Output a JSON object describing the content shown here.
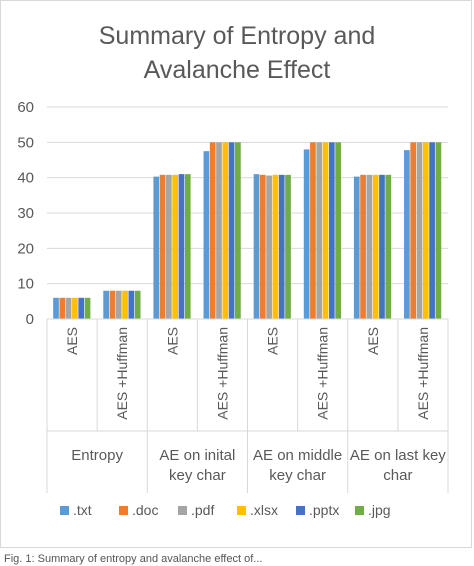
{
  "chart_data": {
    "type": "bar",
    "title_lines": [
      "Summary of Entropy and",
      "Avalanche Effect"
    ],
    "groups": [
      {
        "label_lines": [
          "Entropy"
        ],
        "subcategories": [
          "AES",
          "AES +Huffman"
        ]
      },
      {
        "label_lines": [
          "AE on inital",
          "key char"
        ],
        "subcategories": [
          "AES",
          "AES +Huffman"
        ]
      },
      {
        "label_lines": [
          "AE on middle",
          "key char"
        ],
        "subcategories": [
          "AES",
          "AES +Huffman"
        ]
      },
      {
        "label_lines": [
          "AE on last key",
          "char"
        ],
        "subcategories": [
          "AES",
          "AES +Huffman"
        ]
      }
    ],
    "series": [
      {
        "name": ".txt",
        "color": "#5b9bd5",
        "values": [
          6,
          8,
          40.3,
          47.5,
          41,
          48,
          40.3,
          47.8
        ]
      },
      {
        "name": ".doc",
        "color": "#ed7d31",
        "values": [
          6,
          8,
          40.8,
          50,
          40.8,
          50,
          40.8,
          50
        ]
      },
      {
        "name": ".pdf",
        "color": "#a5a5a5",
        "values": [
          6,
          8,
          40.8,
          50,
          40.6,
          50,
          40.8,
          50
        ]
      },
      {
        "name": ".xlsx",
        "color": "#ffc000",
        "values": [
          6,
          8,
          40.8,
          50,
          40.8,
          50,
          40.8,
          50
        ]
      },
      {
        "name": ".pptx",
        "color": "#4472c4",
        "values": [
          6,
          8,
          41,
          50,
          40.8,
          50,
          40.8,
          50
        ]
      },
      {
        "name": ".jpg",
        "color": "#70ad47",
        "values": [
          6,
          8,
          41,
          50,
          40.8,
          50,
          40.8,
          50
        ]
      }
    ],
    "y_ticks": [
      0,
      10,
      20,
      30,
      40,
      50,
      60
    ],
    "ylim": [
      0,
      60
    ],
    "grid": true,
    "legend_position": "bottom"
  },
  "caption": "Fig. 1: Summary of entropy and avalanche effect of..."
}
